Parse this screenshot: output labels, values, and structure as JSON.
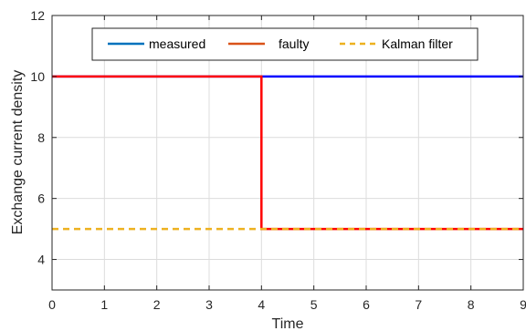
{
  "chart_data": {
    "type": "line",
    "title": "",
    "xlabel": "Time",
    "ylabel": "Exchange current density",
    "xlim": [
      0,
      9
    ],
    "ylim": [
      3,
      12
    ],
    "x_ticks": [
      0,
      1,
      2,
      3,
      4,
      5,
      6,
      7,
      8,
      9
    ],
    "y_ticks": [
      4,
      6,
      8,
      10,
      12
    ],
    "grid": true,
    "legend": {
      "placement": "top",
      "orientation": "horizontal"
    },
    "series": [
      {
        "name": "measured",
        "color": "#0000ff",
        "style": "solid",
        "points": [
          [
            0,
            10
          ],
          [
            9,
            10
          ]
        ]
      },
      {
        "name": "faulty",
        "color": "#ff0000",
        "style": "solid",
        "points": [
          [
            0,
            10
          ],
          [
            4,
            10
          ],
          [
            4,
            5
          ],
          [
            9,
            5
          ]
        ]
      },
      {
        "name": "Kalman filter",
        "color": "#edb120",
        "style": "dashed",
        "points": [
          [
            0,
            5
          ],
          [
            9,
            5
          ]
        ]
      }
    ],
    "legend_colors": {
      "measured": "#0072bd",
      "faulty": "#d95319",
      "Kalman filter": "#edb120"
    }
  }
}
